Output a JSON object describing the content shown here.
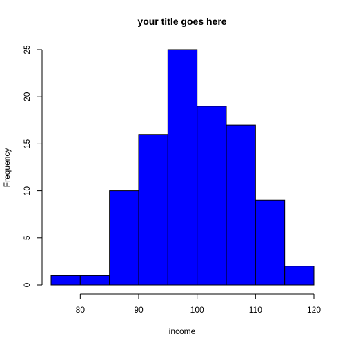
{
  "chart_data": {
    "type": "bar",
    "title": "your title goes here",
    "xlabel": "income",
    "ylabel": "Frequency",
    "bins": [
      {
        "start": 75,
        "end": 80,
        "count": 1
      },
      {
        "start": 80,
        "end": 85,
        "count": 1
      },
      {
        "start": 85,
        "end": 90,
        "count": 10
      },
      {
        "start": 90,
        "end": 95,
        "count": 16
      },
      {
        "start": 95,
        "end": 100,
        "count": 25
      },
      {
        "start": 100,
        "end": 105,
        "count": 19
      },
      {
        "start": 105,
        "end": 110,
        "count": 17
      },
      {
        "start": 110,
        "end": 115,
        "count": 9
      },
      {
        "start": 115,
        "end": 120,
        "count": 2
      }
    ],
    "xlim": [
      75,
      120
    ],
    "ylim": [
      0,
      25
    ],
    "x_ticks": [
      "80",
      "90",
      "100",
      "110",
      "120"
    ],
    "y_ticks": [
      "0",
      "5",
      "10",
      "15",
      "20",
      "25"
    ],
    "bar_color": "#0000ff",
    "grid": false
  }
}
